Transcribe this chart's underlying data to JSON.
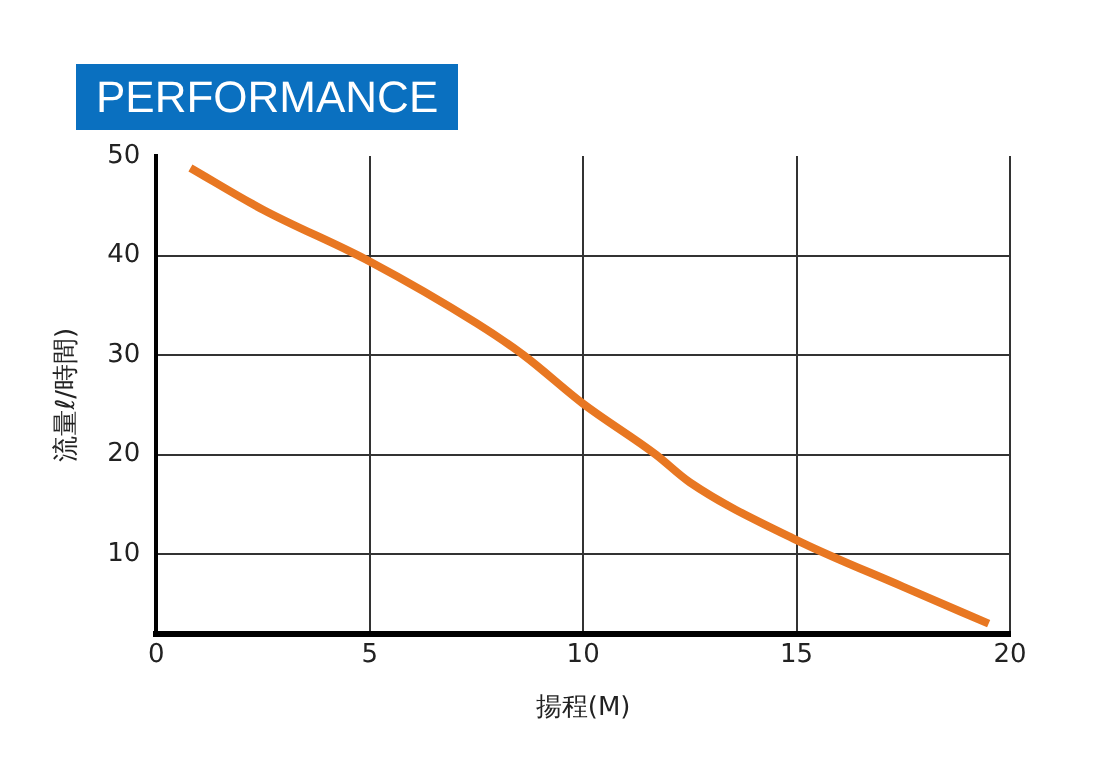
{
  "chart_data": {
    "type": "line",
    "title": "PERFORMANCE",
    "xlabel": "揚程(M)",
    "ylabel": "流量ℓ/時間)",
    "x": [
      0.8,
      2.5,
      5,
      7.5,
      8.6,
      10,
      11.7,
      12.5,
      15,
      17.5,
      19.5
    ],
    "series": [
      {
        "color": "#e87722",
        "values": [
          48.8,
          44.6,
          39.4,
          33.2,
          30,
          25.1,
          20,
          17.2,
          11.4,
          6.7,
          3.0
        ]
      }
    ],
    "xlim": [
      0,
      20
    ],
    "xticks": [
      0,
      5,
      10,
      15,
      20
    ],
    "ylim": [
      2,
      50
    ],
    "yticks": [
      10,
      20,
      30,
      40,
      50
    ],
    "grid": true,
    "legend": false,
    "marker": "none",
    "line_style": "solid"
  }
}
